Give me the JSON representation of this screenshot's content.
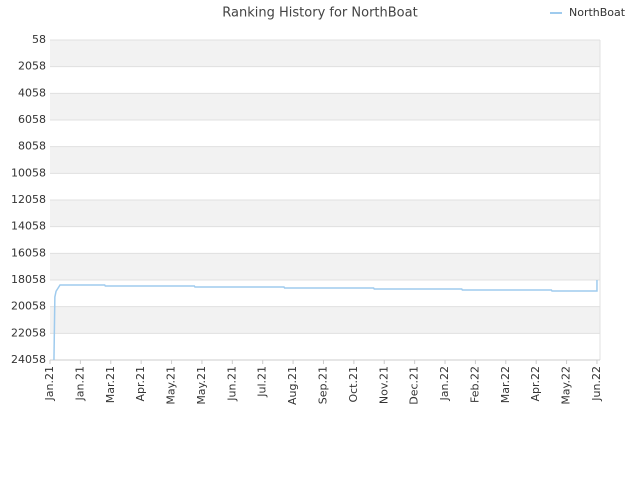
{
  "chart_data": {
    "type": "line",
    "title": "Ranking History for NorthBoat",
    "xlim": [
      0,
      18.1
    ],
    "xticks": [
      {
        "value": 0,
        "label": "Jan.21"
      },
      {
        "value": 1,
        "label": "Jan.21"
      },
      {
        "value": 2,
        "label": "Mar.21"
      },
      {
        "value": 3,
        "label": "Apr.21"
      },
      {
        "value": 4,
        "label": "May.21"
      },
      {
        "value": 5,
        "label": "May.21"
      },
      {
        "value": 6,
        "label": "Jun.21"
      },
      {
        "value": 7,
        "label": "Jul.21"
      },
      {
        "value": 8,
        "label": "Aug.21"
      },
      {
        "value": 9,
        "label": "Sep.21"
      },
      {
        "value": 10,
        "label": "Oct.21"
      },
      {
        "value": 11,
        "label": "Nov.21"
      },
      {
        "value": 12,
        "label": "Dec.21"
      },
      {
        "value": 13,
        "label": "Jan.22"
      },
      {
        "value": 14,
        "label": "Feb.22"
      },
      {
        "value": 15,
        "label": "Mar.22"
      },
      {
        "value": 16,
        "label": "Apr.22"
      },
      {
        "value": 17,
        "label": "May.22"
      },
      {
        "value": 18,
        "label": "Jun.22"
      }
    ],
    "ylim": [
      24058,
      58
    ],
    "yticks": [
      58,
      2058,
      4058,
      6058,
      8058,
      10058,
      12058,
      14058,
      16058,
      18058,
      20058,
      22058,
      24058
    ],
    "grid": true,
    "legend": "top-right",
    "series": [
      {
        "name": "NorthBoat",
        "color": "#9fcbee",
        "x": [
          0.13,
          0.16,
          0.2,
          0.33,
          1.8,
          1.82,
          4.75,
          4.77,
          7.7,
          7.72,
          10.65,
          10.67,
          13.55,
          13.57,
          16.5,
          16.52,
          18.0,
          18.0
        ],
        "values": [
          24058,
          19333,
          18900,
          18433,
          18433,
          18508,
          18508,
          18583,
          18583,
          18658,
          18658,
          18733,
          18733,
          18808,
          18808,
          18883,
          18883,
          18058
        ]
      }
    ]
  }
}
